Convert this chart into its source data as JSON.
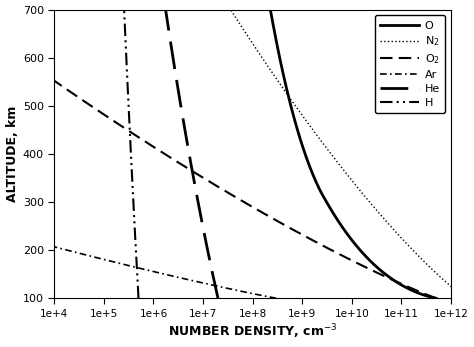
{
  "title": "",
  "xlabel": "NUMBER DENSITY, cm-3",
  "ylabel": "ALTITUDE, km",
  "xlim_log": [
    4,
    12
  ],
  "ylim": [
    100,
    700
  ],
  "background_color": "#ffffff",
  "line_color": "#000000",
  "yticks": [
    100,
    200,
    300,
    400,
    500,
    600,
    700
  ],
  "xtick_exponents": [
    4,
    5,
    6,
    7,
    8,
    9,
    10,
    11,
    12
  ]
}
